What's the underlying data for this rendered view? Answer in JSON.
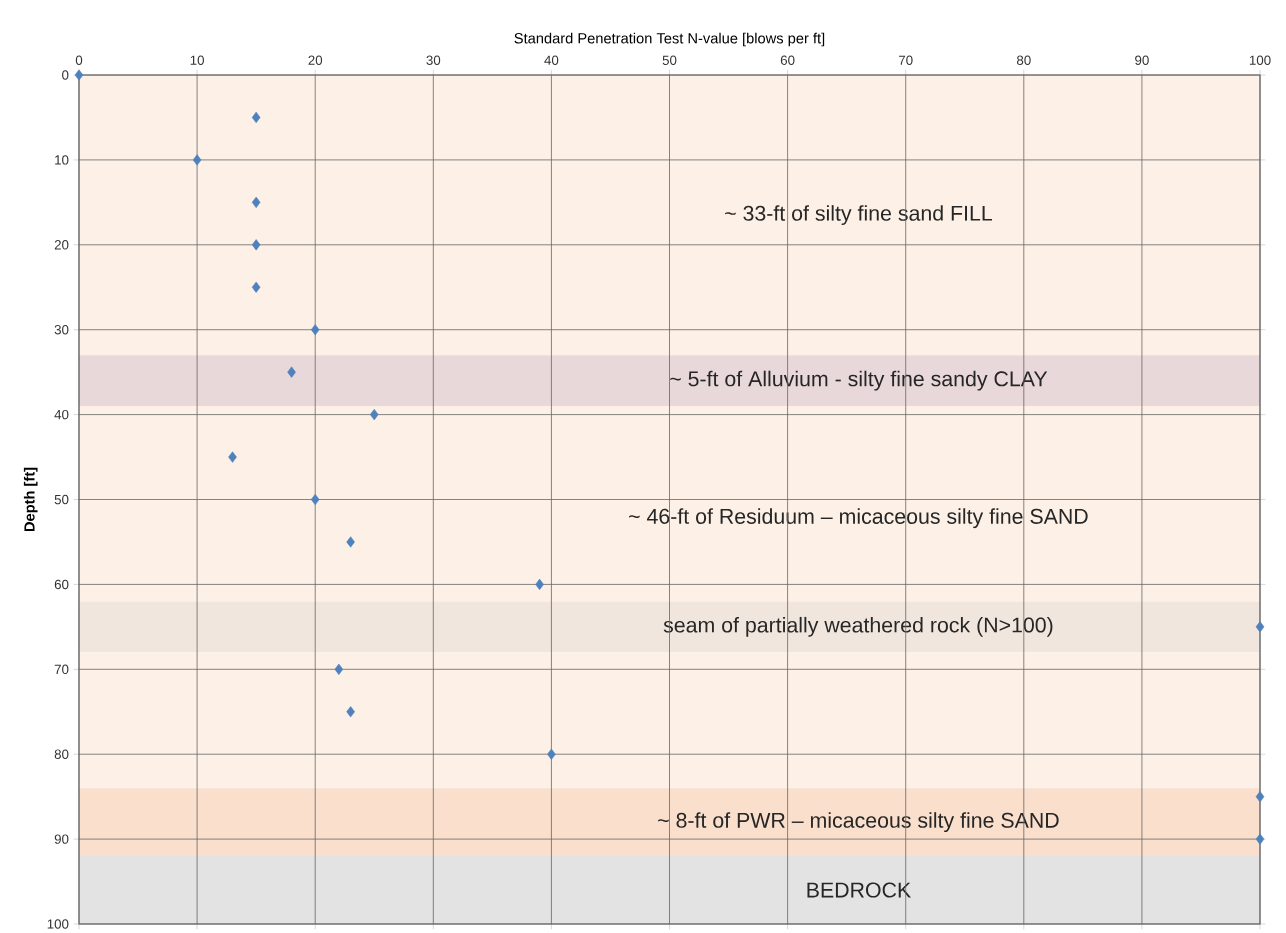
{
  "chart_data": {
    "type": "scatter",
    "xlabel": "Standard Penetration Test N-value [blows per ft]",
    "ylabel": "Depth [ft]",
    "x": [
      0,
      15,
      10,
      15,
      15,
      15,
      20,
      18,
      25,
      13,
      20,
      23,
      39,
      100,
      22,
      23,
      40,
      100,
      100
    ],
    "values": [
      0,
      5,
      10,
      15,
      20,
      25,
      30,
      35,
      40,
      45,
      50,
      55,
      60,
      65,
      70,
      75,
      80,
      85,
      90
    ],
    "color": "#4f81bd",
    "marker": "diamond",
    "grid": true,
    "xlim": [
      0,
      100
    ],
    "xticks": [
      0,
      10,
      20,
      30,
      40,
      50,
      60,
      70,
      80,
      90,
      100
    ],
    "ylim": [
      100,
      0
    ],
    "yticks": [
      0,
      10,
      20,
      30,
      40,
      50,
      60,
      70,
      80,
      90,
      100
    ],
    "bands": [
      {
        "axis": "y",
        "from": 0,
        "to": 33,
        "color": "#fdf1e7",
        "label": "~ 33-ft of silty fine sand FILL"
      },
      {
        "axis": "y",
        "from": 33,
        "to": 39,
        "color": "#e9d8d9",
        "label": "~ 5-ft of Alluvium - silty fine sandy CLAY"
      },
      {
        "axis": "y",
        "from": 39,
        "to": 62,
        "color": "#fdf1e7",
        "label": "~ 46-ft of Residuum – micaceous silty fine SAND"
      },
      {
        "axis": "y",
        "from": 62,
        "to": 68,
        "color": "#f0e6dd",
        "label": "seam of partially weathered rock (N>100)"
      },
      {
        "axis": "y",
        "from": 68,
        "to": 84,
        "color": "#fdf1e7"
      },
      {
        "axis": "y",
        "from": 84,
        "to": 92,
        "color": "#f9dfcc",
        "label": "~ 8-ft of PWR – micaceous silty fine SAND"
      },
      {
        "axis": "y",
        "from": 92,
        "to": 100,
        "color": "#e3e3e3",
        "label": "BEDROCK"
      }
    ]
  }
}
